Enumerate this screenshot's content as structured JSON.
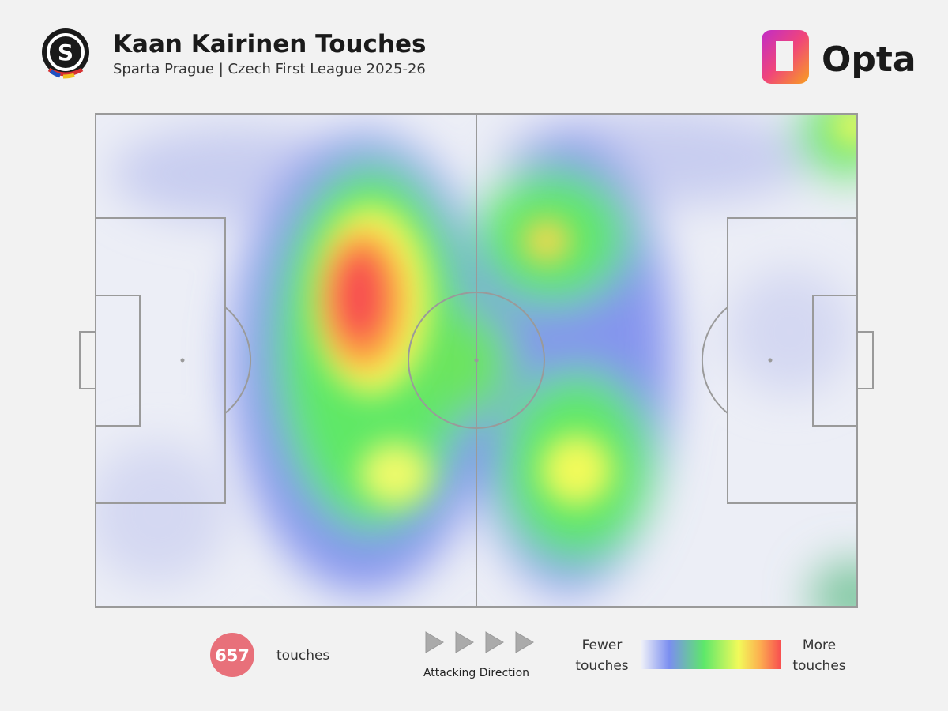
{
  "header": {
    "title": "Kaan Kairinen Touches",
    "subtitle": "Sparta Prague | Czech First League 2025-26",
    "club_badge": "S",
    "brand": "Opta"
  },
  "footer": {
    "count": "657",
    "count_label": "touches",
    "direction_label": "Attacking Direction",
    "legend_low": "Fewer touches",
    "legend_high": "More touches"
  }
}
